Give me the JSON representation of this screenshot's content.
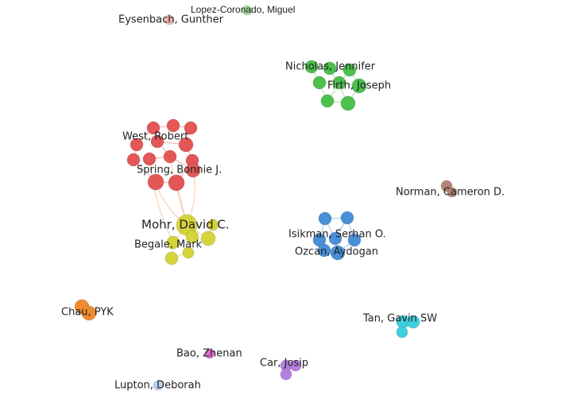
{
  "nodes": [
    {
      "label": "Lopez-Coronado, Miguel"
    },
    {
      "label": "Eysenbach, Gunther"
    },
    {
      "label": "Nicholas, Jennifer"
    },
    {
      "label": "Firth, Joseph"
    },
    {
      "label": "West, Robert"
    },
    {
      "label": "Spring, Bonnie J."
    },
    {
      "label": "Norman, Cameron D."
    },
    {
      "label": "Mohr, David C."
    },
    {
      "label": "Isikman, Serhan O."
    },
    {
      "label": "Begale, Mark"
    },
    {
      "label": "Ozcan, Aydogan"
    },
    {
      "label": "Chau, PYK"
    },
    {
      "label": "Tan, Gavin SW"
    },
    {
      "label": "Bao, Zhenan"
    },
    {
      "label": "Car, Josip"
    },
    {
      "label": "Lupton, Deborah"
    }
  ]
}
